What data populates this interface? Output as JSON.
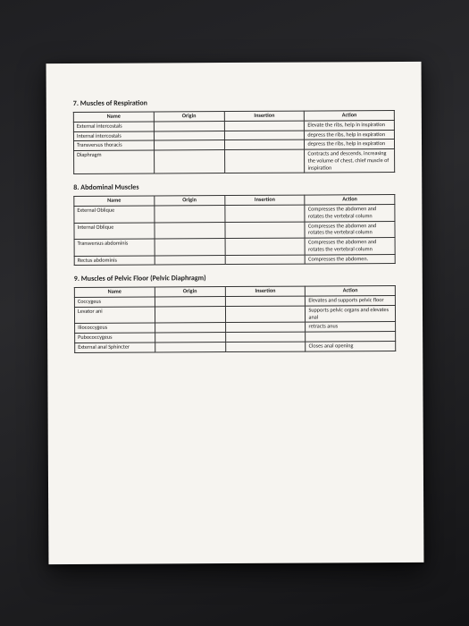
{
  "sections": [
    {
      "title": "7. Muscles of Respiration",
      "headers": [
        "Name",
        "Origin",
        "Insertion",
        "Action"
      ],
      "rows": [
        {
          "name": "External intercostals",
          "origin": "",
          "insertion": "",
          "action": "Elevate the ribs, help in inspiration"
        },
        {
          "name": "Internal intercostals",
          "origin": "",
          "insertion": "",
          "action": "depress the ribs, help in expiration"
        },
        {
          "name": "Transversus thoracis",
          "origin": "",
          "insertion": "",
          "action": "depress the ribs, help in expiration"
        },
        {
          "name": "Diaphragm",
          "origin": "",
          "insertion": "",
          "action": "Contracts and descends, increasing the volume of chest, chief muscle of inspiration"
        }
      ]
    },
    {
      "title": "8. Abdominal Muscles",
      "headers": [
        "Name",
        "Origin",
        "Insertion",
        "Action"
      ],
      "rows": [
        {
          "name": "External Oblique",
          "origin": "",
          "insertion": "",
          "action": "Compresses the abdomen and rotates the vertebral column"
        },
        {
          "name": "Internal Oblique",
          "origin": "",
          "insertion": "",
          "action": "Compresses the abdomen and rotates the vertebral column"
        },
        {
          "name": "Transversus abdominis",
          "origin": "",
          "insertion": "",
          "action": "Compresses the abdomen and rotates the vertebral column"
        },
        {
          "name": "Rectus abdominis",
          "origin": "",
          "insertion": "",
          "action": "Compresses the abdomen."
        }
      ]
    },
    {
      "title": "9. Muscles of Pelvic Floor (Pelvic Diaphragm)",
      "headers": [
        "Name",
        "Origin",
        "Insertion",
        "Action"
      ],
      "rows": [
        {
          "name": "Coccygeus",
          "origin": "",
          "insertion": "",
          "action": "Elevates and supports pelvic floor"
        },
        {
          "name": "Levator ani",
          "origin": "",
          "insertion": "",
          "action": "Supports pelvic organs and elevates anal"
        },
        {
          "name": "Iliococcygeus",
          "origin": "",
          "insertion": "",
          "action": "retracts anus"
        },
        {
          "name": "Pubococcygeus",
          "origin": "",
          "insertion": "",
          "action": ""
        },
        {
          "name": "External anal Sphincter",
          "origin": "",
          "insertion": "",
          "action": "Closes anal opening"
        }
      ]
    }
  ]
}
